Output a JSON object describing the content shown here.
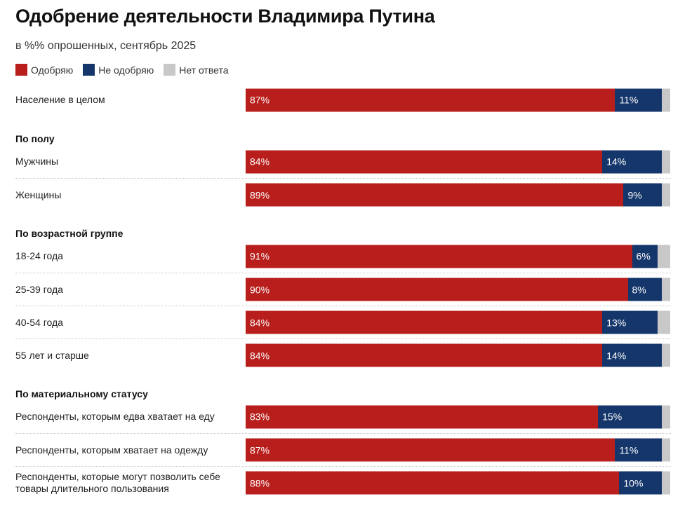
{
  "chart_data": {
    "type": "bar",
    "orientation": "horizontal",
    "stacked": true,
    "title": "Одобрение деятельности Владимира Путина",
    "subtitle": "в %% опрошенных, сентябрь 2025",
    "legend": [
      {
        "name": "Одобряю",
        "color": "#b81f1c"
      },
      {
        "name": "Не одобряю",
        "color": "#15366b"
      },
      {
        "name": "Нет ответа",
        "color": "#c8c8c8"
      }
    ],
    "xlim": [
      0,
      100
    ],
    "groups": [
      {
        "title": "",
        "rows": [
          {
            "label": "Население в целом",
            "values": [
              87,
              11,
              2
            ]
          }
        ]
      },
      {
        "title": "По полу",
        "rows": [
          {
            "label": "Мужчины",
            "values": [
              84,
              14,
              2
            ]
          },
          {
            "label": "Женщины",
            "values": [
              89,
              9,
              2
            ]
          }
        ]
      },
      {
        "title": "По возрастной группе",
        "rows": [
          {
            "label": "18-24 года",
            "values": [
              91,
              6,
              3
            ]
          },
          {
            "label": "25-39 года",
            "values": [
              90,
              8,
              2
            ]
          },
          {
            "label": "40-54 года",
            "values": [
              84,
              13,
              3
            ]
          },
          {
            "label": "55 лет и старше",
            "values": [
              84,
              14,
              2
            ]
          }
        ]
      },
      {
        "title": "По материальному статусу",
        "rows": [
          {
            "label": "Респонденты, которым едва хватает на еду",
            "values": [
              83,
              15,
              2
            ]
          },
          {
            "label": "Респонденты, которым хватает на одежду",
            "values": [
              87,
              11,
              2
            ]
          },
          {
            "label": "Респонденты, которые могут позволить себе товары длительного пользования",
            "values": [
              88,
              10,
              2
            ]
          }
        ]
      }
    ]
  }
}
